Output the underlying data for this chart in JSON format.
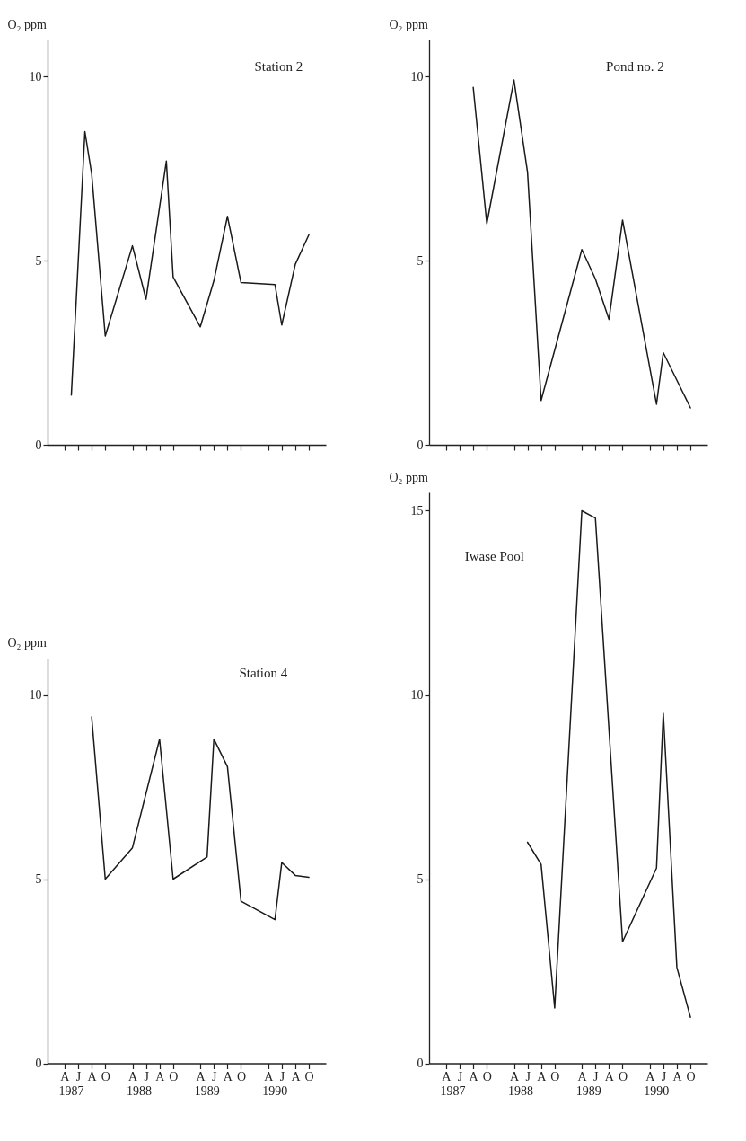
{
  "chart_data": [
    {
      "type": "line",
      "title": "Station 2",
      "ylabel": "O₂ ppm",
      "categories": [
        null,
        null,
        null,
        null,
        null,
        null,
        null,
        null,
        null,
        null,
        null,
        null,
        null,
        null,
        null,
        null,
        null,
        null,
        null,
        null,
        null,
        null,
        null,
        null,
        null,
        null,
        null,
        null,
        null,
        null,
        null,
        null,
        null,
        null,
        null,
        null,
        null,
        null,
        null,
        null,
        null
      ],
      "series": [
        {
          "color": "#1a1a1a",
          "values": [
            null,
            null,
            null,
            1.35,
            null,
            8.5,
            7.35,
            null,
            2.95,
            null,
            null,
            null,
            5.4,
            null,
            3.95,
            null,
            null,
            7.7,
            4.55,
            null,
            null,
            null,
            3.2,
            null,
            4.45,
            null,
            6.2,
            null,
            4.4,
            null,
            null,
            null,
            null,
            4.35,
            3.25,
            null,
            4.9,
            null,
            5.7,
            null,
            null
          ]
        }
      ],
      "ylim": [
        0,
        11
      ],
      "yticks": [
        0,
        5,
        10
      ],
      "grid": false
    },
    {
      "type": "line",
      "title": "Pond no. 2",
      "ylabel": "O₂ ppm",
      "categories": [
        null,
        null,
        null,
        null,
        null,
        null,
        null,
        null,
        null,
        null,
        null,
        null,
        null,
        null,
        null,
        null,
        null,
        null,
        null,
        null,
        null,
        null,
        null,
        null,
        null,
        null,
        null,
        null,
        null,
        null,
        null,
        null,
        null,
        null,
        null,
        null,
        null,
        null,
        null,
        null,
        null
      ],
      "series": [
        {
          "color": "#1a1a1a",
          "values": [
            null,
            null,
            null,
            null,
            null,
            null,
            9.7,
            null,
            6,
            null,
            null,
            null,
            9.9,
            null,
            7.4,
            null,
            1.2,
            null,
            null,
            null,
            null,
            null,
            5.3,
            null,
            4.5,
            null,
            3.4,
            null,
            6.1,
            null,
            null,
            null,
            null,
            1.1,
            2.5,
            null,
            null,
            null,
            1,
            null,
            null
          ]
        }
      ],
      "ylim": [
        0,
        11
      ],
      "yticks": [
        0,
        5,
        10
      ],
      "grid": false
    },
    {
      "type": "line",
      "title": "Station 4",
      "ylabel": "O₂ ppm",
      "annotations": [
        "1987",
        "1988",
        "1989",
        "1990"
      ],
      "categories": [
        null,
        null,
        "A",
        null,
        "J",
        null,
        "A",
        null,
        "O",
        null,
        null,
        null,
        "A",
        null,
        "J",
        null,
        "A",
        null,
        "O",
        null,
        null,
        null,
        "A",
        null,
        "J",
        null,
        "A",
        null,
        "O",
        null,
        null,
        null,
        "A",
        null,
        "J",
        null,
        "A",
        null,
        "O",
        null,
        null
      ],
      "series": [
        {
          "color": "#1a1a1a",
          "values": [
            null,
            null,
            null,
            null,
            null,
            null,
            9.4,
            null,
            5,
            null,
            null,
            null,
            5.85,
            null,
            null,
            null,
            8.8,
            null,
            5,
            null,
            null,
            null,
            null,
            5.6,
            8.8,
            null,
            8.05,
            null,
            4.4,
            null,
            null,
            null,
            null,
            3.9,
            5.45,
            null,
            5.1,
            null,
            5.05,
            null,
            null
          ]
        }
      ],
      "ylim": [
        0,
        11
      ],
      "yticks": [
        0,
        5,
        10
      ],
      "grid": false
    },
    {
      "type": "line",
      "title": "Iwase Pool",
      "ylabel": "O₂ ppm",
      "annotations": [
        "1987",
        "1988",
        "1989",
        "1990"
      ],
      "categories": [
        null,
        null,
        "A",
        null,
        "J",
        null,
        "A",
        null,
        "O",
        null,
        null,
        null,
        "A",
        null,
        "J",
        null,
        "A",
        null,
        "O",
        null,
        null,
        null,
        "A",
        null,
        "J",
        null,
        "A",
        null,
        "O",
        null,
        null,
        null,
        "A",
        null,
        "J",
        null,
        "A",
        null,
        "O",
        null,
        null
      ],
      "series": [
        {
          "color": "#1a1a1a",
          "values": [
            null,
            null,
            null,
            null,
            null,
            null,
            null,
            null,
            null,
            null,
            null,
            null,
            null,
            null,
            6,
            null,
            5.4,
            null,
            1.5,
            null,
            null,
            null,
            15,
            null,
            14.8,
            null,
            null,
            null,
            3.3,
            null,
            null,
            null,
            null,
            5.3,
            9.5,
            null,
            2.6,
            null,
            1.25,
            null,
            null
          ]
        }
      ],
      "ylim": [
        0,
        15.5
      ],
      "yticks": [
        0,
        5,
        10,
        15
      ],
      "grid": false
    }
  ]
}
